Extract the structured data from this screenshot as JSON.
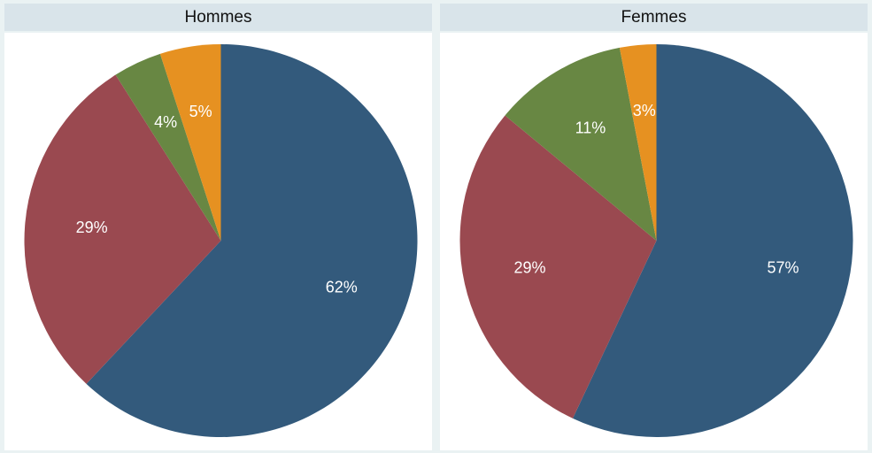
{
  "chart_data": [
    {
      "type": "pie",
      "title": "Hommes",
      "values": [
        62,
        29,
        4,
        5
      ],
      "value_labels": [
        "62%",
        "29%",
        "4%",
        "5%"
      ],
      "colors": [
        "#335a7c",
        "#9a4950",
        "#688743",
        "#e69121"
      ]
    },
    {
      "type": "pie",
      "title": "Femmes",
      "values": [
        57,
        29,
        11,
        3
      ],
      "value_labels": [
        "57%",
        "29%",
        "11%",
        "3%"
      ],
      "colors": [
        "#335a7c",
        "#9a4950",
        "#688743",
        "#e69121"
      ]
    }
  ]
}
